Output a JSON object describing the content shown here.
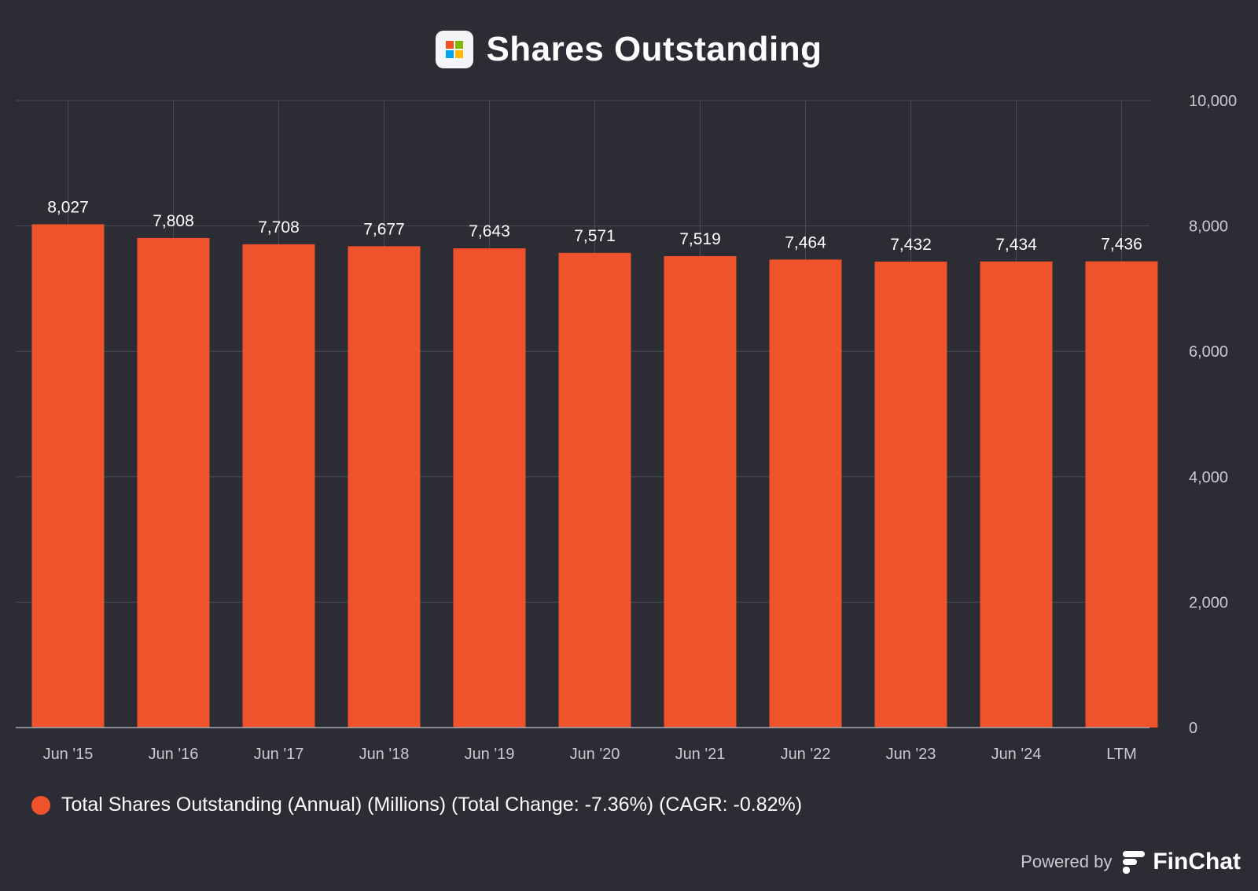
{
  "header": {
    "title": "Shares Outstanding",
    "logo_icon": "microsoft-logo-icon",
    "logo_colors": [
      "#f25022",
      "#7fba00",
      "#00a4ef",
      "#ffb900"
    ]
  },
  "chart_data": {
    "type": "bar",
    "title": "Shares Outstanding",
    "categories": [
      "Jun '15",
      "Jun '16",
      "Jun '17",
      "Jun '18",
      "Jun '19",
      "Jun '20",
      "Jun '21",
      "Jun '22",
      "Jun '23",
      "Jun '24",
      "LTM"
    ],
    "series": [
      {
        "name": "Total Shares Outstanding (Annual) (Millions) (Total Change: -7.36%) (CAGR: -0.82%)",
        "values": [
          8027,
          7808,
          7708,
          7677,
          7643,
          7571,
          7519,
          7464,
          7432,
          7434,
          7436
        ],
        "value_labels": [
          "8,027",
          "7,808",
          "7,708",
          "7,677",
          "7,643",
          "7,571",
          "7,519",
          "7,464",
          "7,432",
          "7,434",
          "7,436"
        ],
        "color": "#f0522c"
      }
    ],
    "ylim": [
      0,
      10000
    ],
    "yticks": [
      0,
      2000,
      4000,
      6000,
      8000,
      10000
    ],
    "ytick_labels": [
      "0",
      "2,000",
      "4,000",
      "6,000",
      "8,000",
      "10,000"
    ],
    "y_axis_position": "right",
    "grid": true,
    "legend_position": "bottom-left",
    "xlabel": "",
    "ylabel": ""
  },
  "legend": {
    "label": "Total Shares Outstanding (Annual) (Millions) (Total Change: -7.36%) (CAGR: -0.82%)",
    "color": "#f0522c"
  },
  "footer": {
    "powered_by": "Powered by",
    "brand": "FinChat",
    "brand_icon": "finchat-logo-icon"
  }
}
